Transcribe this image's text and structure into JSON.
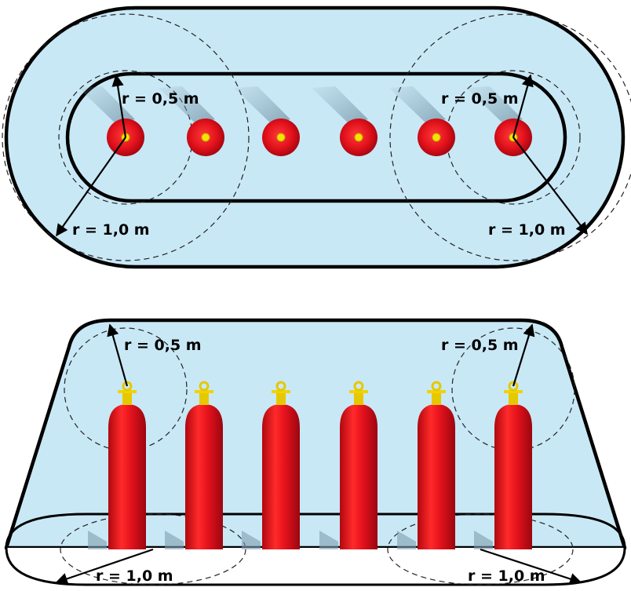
{
  "colors": {
    "zone_fill": "#c9e8f6",
    "cylinder_red": "#e0101a",
    "cylinder_dark": "#a80810",
    "valve_yellow": "#f2d200",
    "outline": "#000000"
  },
  "top_view": {
    "cylinder_count": 6,
    "labels": {
      "inner_left": "r = 0,5 m",
      "inner_right": "r = 0,5 m",
      "outer_left": "r = 1,0 m",
      "outer_right": "r = 1,0 m"
    }
  },
  "side_view": {
    "cylinder_count": 6,
    "labels": {
      "inner_left": "r = 0,5 m",
      "inner_right": "r = 0,5 m",
      "outer_left": "r = 1,0 m",
      "outer_right": "r = 1,0 m"
    }
  }
}
